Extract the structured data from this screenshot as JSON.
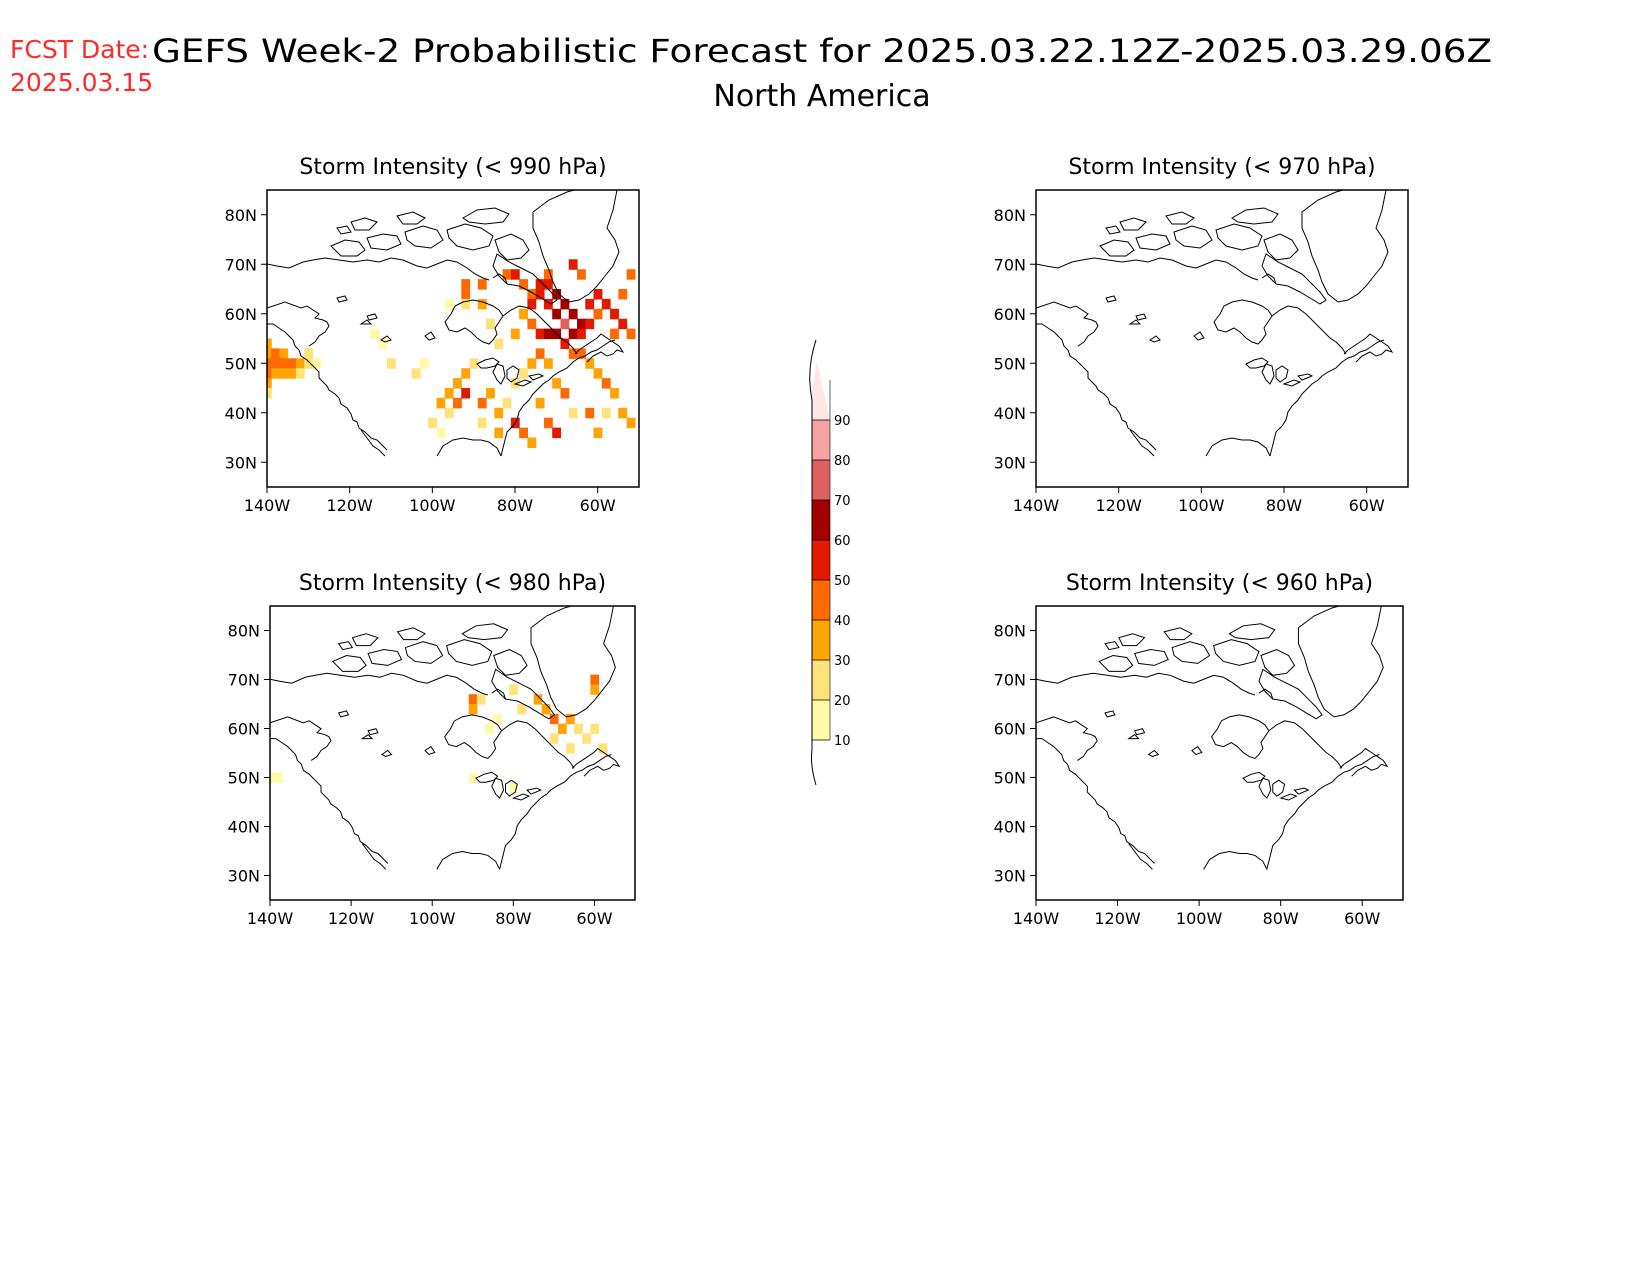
{
  "header": {
    "fcst_label": "FCST Date:",
    "fcst_date": "2025.03.15",
    "title": "GEFS Week-2 Probabilistic Forecast for 2025.03.22.12Z-2025.03.29.06Z",
    "region": "North America",
    "fcst_color": "#ff2a2a"
  },
  "axes": {
    "lon_ticks": [
      "140W",
      "120W",
      "100W",
      "80W",
      "60W"
    ],
    "lon_values": [
      -140,
      -120,
      -100,
      -80,
      -60
    ],
    "lat_ticks": [
      "80N",
      "70N",
      "60N",
      "50N",
      "40N",
      "30N"
    ],
    "lat_values": [
      80,
      70,
      60,
      50,
      40,
      30
    ],
    "lon_range": [
      -140,
      -50
    ],
    "lat_range": [
      25,
      85
    ]
  },
  "panels": [
    {
      "title": "Storm Intensity (< 990 hPa)",
      "cells": [
        [
          -140,
          54,
          30
        ],
        [
          -140,
          52,
          30
        ],
        [
          -140,
          50,
          40
        ],
        [
          -140,
          48,
          40
        ],
        [
          -140,
          46,
          30
        ],
        [
          -140,
          44,
          20
        ],
        [
          -138,
          52,
          40
        ],
        [
          -138,
          50,
          40
        ],
        [
          -138,
          48,
          30
        ],
        [
          -136,
          52,
          30
        ],
        [
          -136,
          50,
          40
        ],
        [
          -136,
          48,
          30
        ],
        [
          -134,
          50,
          40
        ],
        [
          -134,
          48,
          30
        ],
        [
          -132,
          50,
          30
        ],
        [
          -132,
          48,
          20
        ],
        [
          -130,
          52,
          20
        ],
        [
          -130,
          50,
          20
        ],
        [
          -128,
          50,
          10
        ],
        [
          -110,
          50,
          20
        ],
        [
          -114,
          56,
          10
        ],
        [
          -112,
          54,
          10
        ],
        [
          -96,
          62,
          10
        ],
        [
          -96,
          40,
          20
        ],
        [
          -92,
          66,
          40
        ],
        [
          -92,
          64,
          40
        ],
        [
          -92,
          62,
          20
        ],
        [
          -88,
          66,
          40
        ],
        [
          -88,
          62,
          30
        ],
        [
          -82,
          68,
          40
        ],
        [
          -80,
          68,
          50
        ],
        [
          -78,
          66,
          40
        ],
        [
          -76,
          64,
          40
        ],
        [
          -76,
          62,
          50
        ],
        [
          -74,
          66,
          50
        ],
        [
          -74,
          64,
          50
        ],
        [
          -72,
          68,
          40
        ],
        [
          -72,
          66,
          50
        ],
        [
          -72,
          62,
          50
        ],
        [
          -70,
          64,
          60
        ],
        [
          -70,
          60,
          60
        ],
        [
          -68,
          62,
          60
        ],
        [
          -68,
          58,
          70
        ],
        [
          -66,
          60,
          60
        ],
        [
          -66,
          56,
          60
        ],
        [
          -64,
          58,
          60
        ],
        [
          -64,
          56,
          50
        ],
        [
          -62,
          62,
          50
        ],
        [
          -62,
          58,
          50
        ],
        [
          -60,
          64,
          50
        ],
        [
          -60,
          60,
          40
        ],
        [
          -58,
          62,
          50
        ],
        [
          -56,
          60,
          50
        ],
        [
          -56,
          56,
          40
        ],
        [
          -54,
          64,
          40
        ],
        [
          -54,
          58,
          50
        ],
        [
          -52,
          56,
          40
        ],
        [
          -52,
          68,
          40
        ],
        [
          -66,
          70,
          50
        ],
        [
          -64,
          68,
          40
        ],
        [
          -78,
          60,
          30
        ],
        [
          -80,
          56,
          30
        ],
        [
          -76,
          58,
          40
        ],
        [
          -74,
          56,
          50
        ],
        [
          -72,
          56,
          60
        ],
        [
          -70,
          56,
          60
        ],
        [
          -68,
          54,
          50
        ],
        [
          -66,
          52,
          40
        ],
        [
          -64,
          52,
          40
        ],
        [
          -62,
          50,
          30
        ],
        [
          -60,
          48,
          30
        ],
        [
          -58,
          46,
          40
        ],
        [
          -56,
          44,
          30
        ],
        [
          -54,
          40,
          30
        ],
        [
          -52,
          38,
          30
        ],
        [
          -76,
          50,
          30
        ],
        [
          -74,
          52,
          40
        ],
        [
          -72,
          50,
          30
        ],
        [
          -70,
          46,
          30
        ],
        [
          -68,
          44,
          40
        ],
        [
          -66,
          40,
          20
        ],
        [
          -84,
          54,
          20
        ],
        [
          -86,
          58,
          20
        ],
        [
          -90,
          50,
          20
        ],
        [
          -92,
          48,
          30
        ],
        [
          -94,
          46,
          30
        ],
        [
          -96,
          44,
          30
        ],
        [
          -98,
          42,
          30
        ],
        [
          -94,
          42,
          40
        ],
        [
          -92,
          44,
          50
        ],
        [
          -88,
          42,
          40
        ],
        [
          -86,
          44,
          30
        ],
        [
          -84,
          40,
          30
        ],
        [
          -82,
          42,
          20
        ],
        [
          -80,
          46,
          20
        ],
        [
          -78,
          48,
          20
        ],
        [
          -100,
          38,
          20
        ],
        [
          -98,
          36,
          10
        ],
        [
          -78,
          36,
          40
        ],
        [
          -76,
          34,
          30
        ],
        [
          -72,
          38,
          40
        ],
        [
          -70,
          36,
          50
        ],
        [
          -60,
          36,
          30
        ],
        [
          -62,
          40,
          40
        ],
        [
          -58,
          40,
          20
        ],
        [
          -88,
          38,
          20
        ],
        [
          -104,
          48,
          20
        ],
        [
          -102,
          50,
          10
        ],
        [
          -84,
          36,
          30
        ],
        [
          -80,
          38,
          50
        ],
        [
          -74,
          42,
          30
        ]
      ]
    },
    {
      "title": "Storm Intensity (< 970 hPa)",
      "cells": []
    },
    {
      "title": "Storm Intensity (< 980 hPa)",
      "cells": [
        [
          -90,
          66,
          40
        ],
        [
          -90,
          64,
          30
        ],
        [
          -88,
          66,
          20
        ],
        [
          -80,
          68,
          20
        ],
        [
          -78,
          64,
          20
        ],
        [
          -74,
          66,
          30
        ],
        [
          -72,
          64,
          30
        ],
        [
          -70,
          62,
          40
        ],
        [
          -68,
          60,
          30
        ],
        [
          -66,
          62,
          30
        ],
        [
          -64,
          60,
          20
        ],
        [
          -62,
          58,
          20
        ],
        [
          -60,
          60,
          20
        ],
        [
          -58,
          56,
          20
        ],
        [
          -60,
          70,
          40
        ],
        [
          -60,
          68,
          30
        ],
        [
          -66,
          56,
          20
        ],
        [
          -70,
          58,
          20
        ],
        [
          -140,
          50,
          10
        ],
        [
          -138,
          50,
          10
        ],
        [
          -84,
          62,
          10
        ],
        [
          -86,
          60,
          10
        ],
        [
          -90,
          50,
          10
        ],
        [
          -80,
          48,
          10
        ]
      ]
    },
    {
      "title": "Storm Intensity (< 960 hPa)",
      "cells": []
    }
  ],
  "colorbar": {
    "labels": [
      "10",
      "20",
      "30",
      "40",
      "50",
      "60",
      "70",
      "80",
      "90"
    ],
    "values": [
      10,
      20,
      30,
      40,
      50,
      60,
      70,
      80,
      90
    ],
    "colors": [
      "#fffaa8",
      "#ffe27a",
      "#ffa400",
      "#ff6a00",
      "#e31a00",
      "#a30000",
      "#e06060",
      "#f4a2a2",
      "#ffe6e6"
    ]
  }
}
